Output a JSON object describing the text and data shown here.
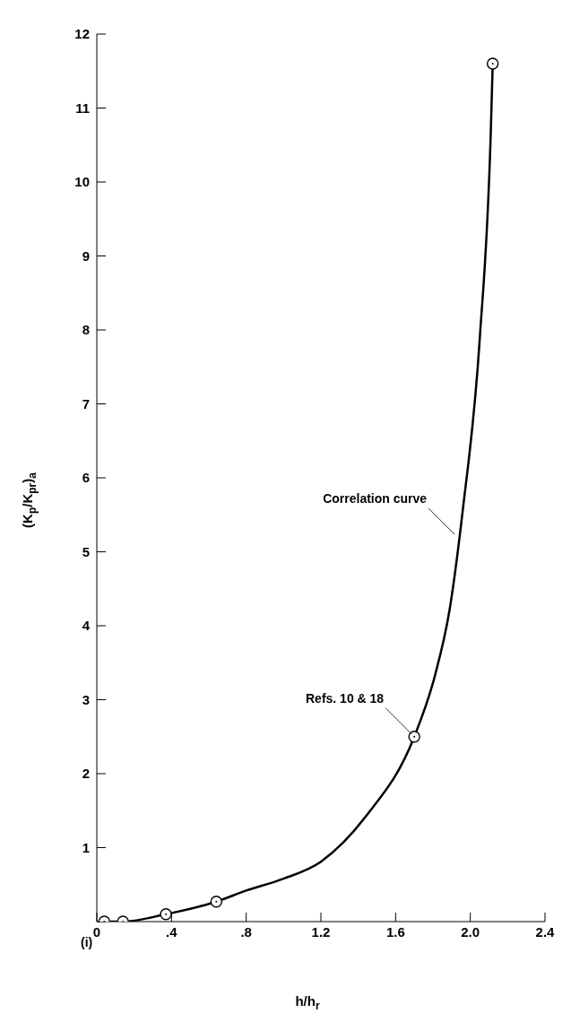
{
  "chart_data": {
    "type": "scatter",
    "xlabel": "h/h$_{r}$",
    "ylabel": "(K$_{p}$/K$_{pr}$)$_{a}$",
    "xlim": [
      0,
      2.4
    ],
    "ylim": [
      0,
      12
    ],
    "xticks": [
      {
        "value": 0,
        "label": "0"
      },
      {
        "value": 0.4,
        "label": ".4"
      },
      {
        "value": 0.8,
        "label": ".8"
      },
      1.2,
      1.6,
      {
        "value": 2,
        "label": "2.0"
      },
      2.4
    ],
    "yticks": [
      {
        "value": 0,
        "label": null
      },
      1,
      2,
      3,
      4,
      5,
      6,
      7,
      8,
      9,
      10,
      11,
      12
    ],
    "marker": "circle",
    "series": [
      {
        "type": "line",
        "color": "#000000",
        "marker": "none",
        "x": [
          0.04,
          0.14,
          0.37,
          0.64,
          0.8,
          1.0,
          1.2,
          1.44,
          1.7,
          1.81,
          1.89,
          1.96,
          2.05,
          2.11,
          2.12
        ],
        "values": [
          0,
          0,
          0.1,
          0.27,
          0.42,
          0.58,
          0.81,
          1.42,
          2.5,
          3.32,
          4.23,
          5.57,
          7.86,
          10.7,
          11.6
        ]
      },
      {
        "color": "#000000",
        "x": [
          0.04,
          0.14,
          0.37,
          0.64,
          1.7,
          2.12
        ],
        "values": [
          0,
          0,
          0.1,
          0.27,
          2.5,
          11.6
        ]
      }
    ],
    "annotations": [
      {
        "text": "Correlation curve",
        "x": 1.93,
        "y": 5.2
      },
      {
        "text": "Refs. 10 & 18",
        "x": 1.7,
        "y": 2.5
      },
      "(i)"
    ]
  }
}
